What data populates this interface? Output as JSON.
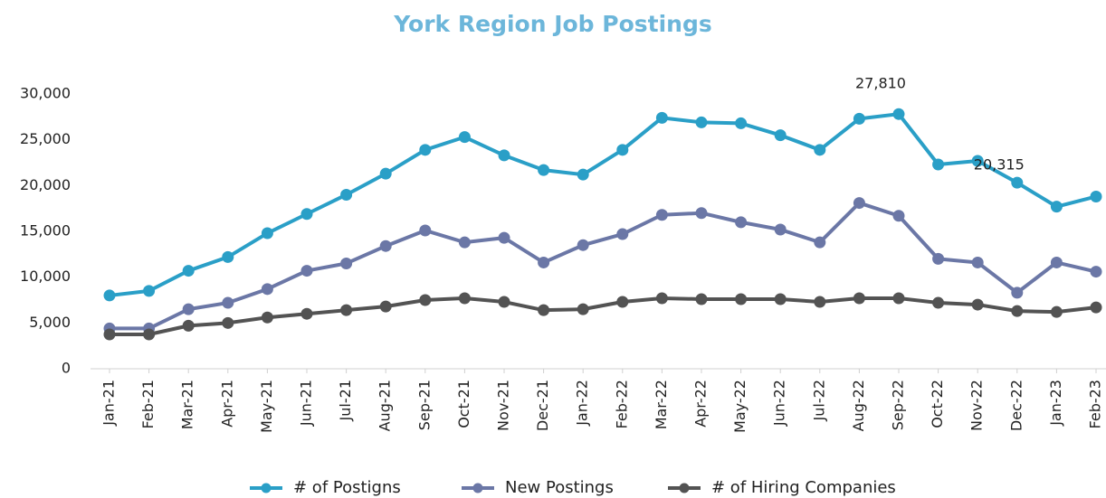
{
  "chart_data": {
    "type": "line",
    "title": "York Region Job Postings",
    "categories": [
      "Jan-21",
      "Feb-21",
      "Mar-21",
      "Apr-21",
      "May-21",
      "Jun-21",
      "Jul-21",
      "Aug-21",
      "Sep-21",
      "Oct-21",
      "Nov-21",
      "Dec-21",
      "Jan-22",
      "Feb-22",
      "Mar-22",
      "Apr-22",
      "May-22",
      "Jun-22",
      "Jul-22",
      "Aug-22",
      "Sep-22",
      "Oct-22",
      "Nov-22",
      "Dec-22",
      "Jan-23",
      "Feb-23"
    ],
    "series": [
      {
        "name": "# of Postigns",
        "color": "#2a9fc7",
        "values": [
          8000,
          8500,
          10700,
          12200,
          14800,
          16900,
          19000,
          21300,
          23900,
          25300,
          23300,
          21700,
          21200,
          23900,
          27400,
          26900,
          26800,
          25500,
          23900,
          27300,
          27810,
          22300,
          22700,
          20315,
          17700,
          18800
        ],
        "value_labels": [
          null,
          null,
          null,
          null,
          null,
          null,
          null,
          null,
          null,
          null,
          null,
          null,
          null,
          null,
          null,
          null,
          null,
          null,
          null,
          null,
          "27,810",
          null,
          null,
          "20,315",
          null,
          null
        ]
      },
      {
        "name": "New Postings",
        "color": "#6b77a6",
        "values": [
          4400,
          4400,
          6500,
          7200,
          8700,
          10700,
          11500,
          13400,
          15100,
          13800,
          14300,
          11600,
          13500,
          14700,
          16800,
          17000,
          16000,
          15200,
          13800,
          18100,
          16700,
          12000,
          11600,
          8300,
          11600,
          10600
        ]
      },
      {
        "name": "# of Hiring Companies",
        "color": "#535353",
        "values": [
          3750,
          3750,
          4700,
          5000,
          5600,
          6000,
          6400,
          6800,
          7500,
          7700,
          7300,
          6400,
          6500,
          7300,
          7700,
          7600,
          7600,
          7600,
          7300,
          7700,
          7700,
          7200,
          7000,
          6300,
          6200,
          6700
        ]
      }
    ],
    "ylim": [
      0,
      30000
    ],
    "yticks": [
      0,
      {
        "value": 5000,
        "label": "5,000"
      },
      {
        "value": 10000,
        "label": "10,000"
      },
      {
        "value": 15000,
        "label": "15,000"
      },
      {
        "value": 20000,
        "label": "20,000"
      },
      {
        "value": 25000,
        "label": "25,000"
      },
      {
        "value": 30000,
        "label": "30,000"
      }
    ],
    "legend": "bottom"
  }
}
